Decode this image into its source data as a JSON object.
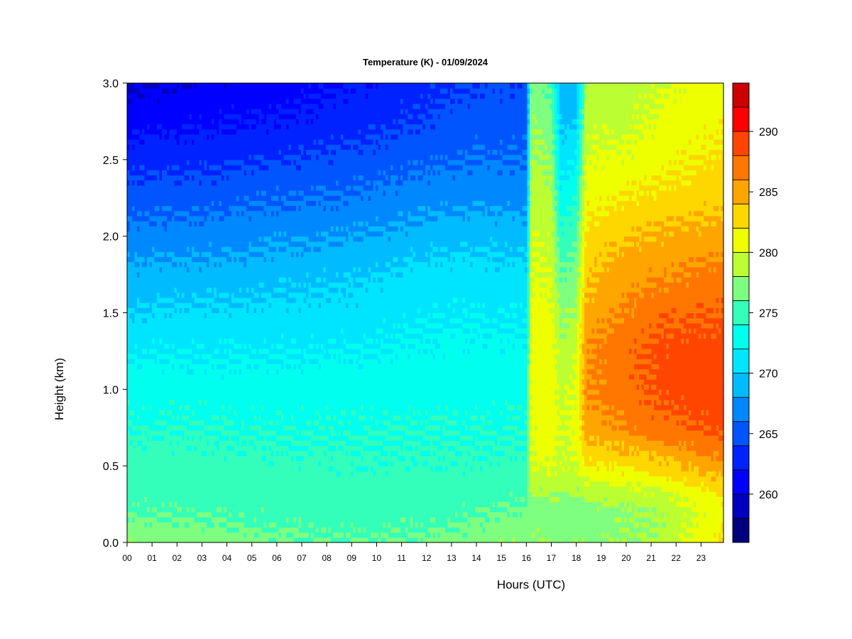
{
  "chart_data": {
    "type": "heatmap",
    "title": "Temperature (K) - 01/09/2024",
    "xlabel": "Hours (UTC)",
    "ylabel": "Height (km)",
    "x_ticks": [
      "00",
      "01",
      "02",
      "03",
      "04",
      "05",
      "06",
      "07",
      "08",
      "09",
      "10",
      "11",
      "12",
      "13",
      "14",
      "15",
      "16",
      "17",
      "18",
      "19",
      "20",
      "21",
      "22",
      "23"
    ],
    "x_range": [
      0,
      23.9
    ],
    "y_ticks": [
      "0.0",
      "0.5",
      "1.0",
      "1.5",
      "2.0",
      "2.5",
      "3.0"
    ],
    "y_range": [
      0,
      3.0
    ],
    "colorbar": {
      "range": [
        256,
        294
      ],
      "ticks": [
        "260",
        "265",
        "270",
        "275",
        "280",
        "285",
        "290"
      ],
      "levels": [
        256,
        258,
        260,
        262,
        264,
        266,
        268,
        270,
        272,
        274,
        276,
        278,
        280,
        282,
        284,
        286,
        288,
        290,
        292,
        294
      ],
      "colors": [
        "#00007F",
        "#0000BF",
        "#0000FF",
        "#0022FF",
        "#0055FF",
        "#0088FF",
        "#00BBFF",
        "#00E5FF",
        "#00FFEE",
        "#33FFBB",
        "#7FFF7F",
        "#BBFF33",
        "#EEFF00",
        "#FFD700",
        "#FFA500",
        "#FF7700",
        "#FF4500",
        "#FF0000",
        "#CC0000",
        "#800000"
      ]
    },
    "profile_heights_km": [
      0.0,
      0.1,
      0.2,
      0.35,
      0.5,
      0.75,
      1.0,
      1.25,
      1.5,
      1.75,
      2.0,
      2.25,
      2.5,
      2.75,
      3.0
    ],
    "profiles": [
      {
        "hour": 0,
        "temps": [
          277.5,
          276.8,
          275.8,
          275.2,
          274.8,
          274.0,
          273.2,
          271.8,
          270.2,
          268.6,
          266.8,
          265.0,
          263.2,
          261.2,
          259.6
        ]
      },
      {
        "hour": 3,
        "temps": [
          277.2,
          276.5,
          275.6,
          275.0,
          274.8,
          274.0,
          273.0,
          271.8,
          270.4,
          268.8,
          267.0,
          265.2,
          263.4,
          261.6,
          260.4
        ]
      },
      {
        "hour": 6,
        "temps": [
          276.5,
          275.8,
          275.4,
          275.0,
          274.6,
          273.8,
          273.0,
          271.8,
          270.6,
          269.2,
          267.6,
          265.8,
          264.0,
          262.2,
          261.0
        ]
      },
      {
        "hour": 9,
        "temps": [
          276.0,
          275.5,
          275.0,
          274.8,
          274.4,
          273.8,
          273.0,
          272.0,
          270.8,
          269.8,
          268.0,
          266.2,
          264.6,
          263.0,
          262.0
        ]
      },
      {
        "hour": 12,
        "temps": [
          276.4,
          275.8,
          275.2,
          274.8,
          274.4,
          274.0,
          273.2,
          272.4,
          271.6,
          270.8,
          269.0,
          267.2,
          265.6,
          264.2,
          263.4
        ]
      },
      {
        "hour": 14,
        "temps": [
          277.2,
          276.4,
          275.8,
          275.0,
          274.4,
          273.8,
          273.0,
          272.6,
          271.8,
          270.8,
          269.4,
          267.4,
          266.0,
          265.0,
          264.0
        ]
      },
      {
        "hour": 16,
        "temps": [
          277.8,
          277.2,
          276.4,
          275.2,
          274.6,
          274.0,
          273.4,
          272.6,
          271.6,
          270.6,
          269.2,
          267.2,
          266.0,
          265.0,
          264.4
        ]
      },
      {
        "hour": 16.2,
        "temps": [
          277.8,
          277.4,
          276.6,
          278.4,
          280.0,
          280.4,
          280.8,
          281.0,
          280.8,
          280.4,
          279.8,
          279.2,
          278.6,
          278.0,
          277.2
        ]
      },
      {
        "hour": 17,
        "temps": [
          277.6,
          277.2,
          276.6,
          278.6,
          280.4,
          281.0,
          281.0,
          281.0,
          280.6,
          280.0,
          279.4,
          278.6,
          277.6,
          276.6,
          275.6
        ]
      },
      {
        "hour": 17.4,
        "temps": [
          277.6,
          277.0,
          276.6,
          278.2,
          279.4,
          279.6,
          279.4,
          278.6,
          277.4,
          276.0,
          274.4,
          272.6,
          270.8,
          269.6,
          268.6
        ]
      },
      {
        "hour": 18,
        "temps": [
          277.4,
          277.0,
          276.8,
          278.4,
          280.0,
          280.4,
          280.4,
          279.6,
          278.4,
          277.2,
          275.6,
          273.8,
          272.0,
          270.0,
          268.6
        ]
      },
      {
        "hour": 18.4,
        "temps": [
          277.6,
          277.2,
          277.0,
          279.2,
          281.6,
          285.0,
          286.0,
          285.8,
          284.8,
          283.6,
          282.4,
          281.2,
          280.2,
          279.2,
          278.2
        ]
      },
      {
        "hour": 20,
        "temps": [
          277.8,
          277.6,
          277.6,
          279.4,
          282.4,
          286.2,
          287.2,
          287.4,
          286.4,
          285.0,
          283.8,
          282.0,
          280.6,
          279.4,
          278.6
        ]
      },
      {
        "hour": 21.5,
        "temps": [
          278.6,
          278.4,
          278.4,
          280.2,
          283.4,
          287.4,
          288.6,
          288.6,
          287.6,
          285.8,
          284.4,
          282.6,
          281.4,
          280.6,
          280.0
        ]
      },
      {
        "hour": 23.9,
        "temps": [
          282.4,
          281.8,
          281.4,
          282.4,
          285.6,
          288.6,
          289.4,
          289.0,
          288.0,
          286.8,
          285.0,
          283.4,
          282.4,
          281.6,
          281.0
        ]
      }
    ]
  }
}
